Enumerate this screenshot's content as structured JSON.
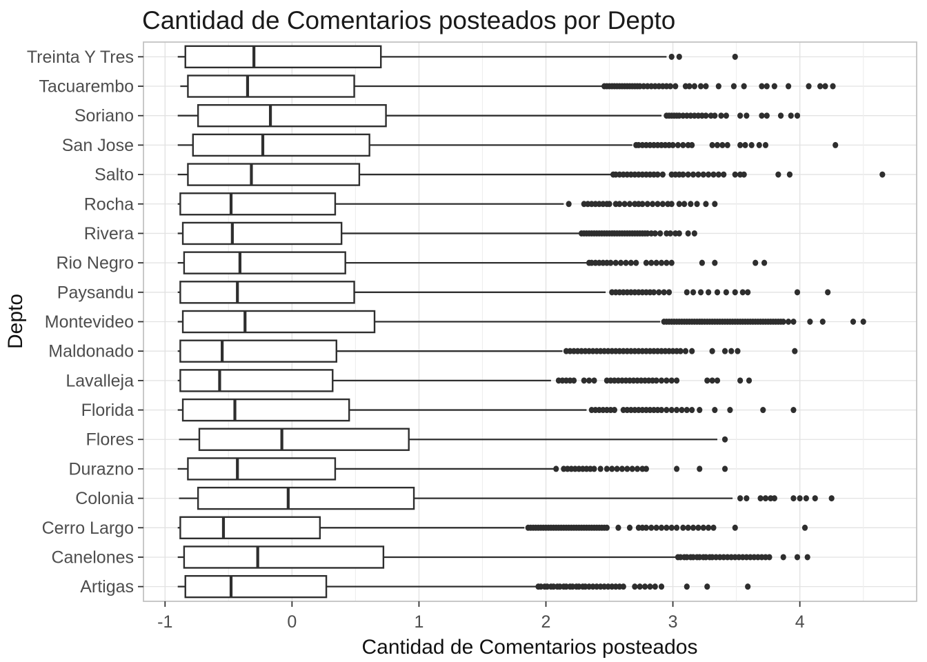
{
  "chart_data": {
    "type": "boxplot",
    "orientation": "horizontal",
    "title": "Cantidad de Comentarios posteados por Depto",
    "xlabel": "Cantidad de Comentarios posteados",
    "ylabel": "Depto",
    "xlim": [
      -1.17,
      4.92
    ],
    "x_ticks": [
      -1,
      0,
      1,
      2,
      3,
      4
    ],
    "x_minor_ticks": [
      -0.5,
      0.5,
      1.5,
      2.5,
      3.5,
      4.5
    ],
    "grid": true,
    "categories_top_to_bottom": [
      "Treinta Y Tres",
      "Tacuarembo",
      "Soriano",
      "San Jose",
      "Salto",
      "Rocha",
      "Rivera",
      "Rio Negro",
      "Paysandu",
      "Montevideo",
      "Maldonado",
      "Lavalleja",
      "Florida",
      "Flores",
      "Durazno",
      "Colonia",
      "Cerro Largo",
      "Canelones",
      "Artigas"
    ],
    "rows": [
      {
        "label": "Treinta Y Tres",
        "whisker_min": -0.9,
        "q1": -0.84,
        "median": -0.3,
        "q3": 0.7,
        "whisker_max": 2.95,
        "outliers": [
          2.99,
          3.05,
          3.49
        ]
      },
      {
        "label": "Tacuarembo",
        "whisker_min": -0.88,
        "q1": -0.82,
        "median": -0.35,
        "q3": 0.49,
        "whisker_max": 2.44,
        "outliers": [
          2.46,
          2.48,
          2.5,
          2.52,
          2.54,
          2.56,
          2.58,
          2.6,
          2.62,
          2.64,
          2.66,
          2.68,
          2.7,
          2.72,
          2.74,
          2.77,
          2.8,
          2.83,
          2.86,
          2.89,
          2.92,
          2.95,
          2.98,
          3.02,
          3.1,
          3.13,
          3.17,
          3.22,
          3.26,
          3.36,
          3.48,
          3.56,
          3.7,
          3.74,
          3.8,
          3.91,
          4.07,
          4.16,
          4.2,
          4.26
        ]
      },
      {
        "label": "Soriano",
        "whisker_min": -0.9,
        "q1": -0.74,
        "median": -0.17,
        "q3": 0.74,
        "whisker_max": 2.91,
        "outliers": [
          2.95,
          2.97,
          2.99,
          3.01,
          3.03,
          3.05,
          3.08,
          3.11,
          3.14,
          3.17,
          3.2,
          3.23,
          3.26,
          3.3,
          3.33,
          3.38,
          3.42,
          3.53,
          3.58,
          3.7,
          3.74,
          3.85,
          3.93,
          3.98
        ]
      },
      {
        "label": "San Jose",
        "whisker_min": -0.9,
        "q1": -0.78,
        "median": -0.23,
        "q3": 0.61,
        "whisker_max": 2.68,
        "outliers": [
          2.71,
          2.73,
          2.76,
          2.79,
          2.82,
          2.85,
          2.88,
          2.91,
          2.94,
          2.97,
          3.0,
          3.04,
          3.08,
          3.12,
          3.15,
          3.31,
          3.35,
          3.39,
          3.43,
          3.53,
          3.57,
          3.62,
          3.68,
          3.73,
          4.28
        ]
      },
      {
        "label": "Salto",
        "whisker_min": -0.9,
        "q1": -0.82,
        "median": -0.32,
        "q3": 0.53,
        "whisker_max": 2.51,
        "outliers": [
          2.53,
          2.55,
          2.58,
          2.61,
          2.64,
          2.67,
          2.7,
          2.73,
          2.76,
          2.79,
          2.82,
          2.85,
          2.88,
          2.92,
          2.99,
          3.02,
          3.05,
          3.08,
          3.12,
          3.16,
          3.2,
          3.24,
          3.28,
          3.32,
          3.36,
          3.4,
          3.49,
          3.53,
          3.56,
          3.83,
          3.92,
          4.65
        ]
      },
      {
        "label": "Rocha",
        "whisker_min": -0.9,
        "q1": -0.88,
        "median": -0.48,
        "q3": 0.34,
        "whisker_max": 2.14,
        "outliers": [
          2.18,
          2.3,
          2.33,
          2.36,
          2.39,
          2.42,
          2.45,
          2.48,
          2.5,
          2.55,
          2.58,
          2.62,
          2.66,
          2.7,
          2.73,
          2.76,
          2.8,
          2.84,
          2.88,
          2.92,
          2.96,
          2.99,
          3.05,
          3.09,
          3.14,
          3.19,
          3.26,
          3.33
        ]
      },
      {
        "label": "Rivera",
        "whisker_min": -0.9,
        "q1": -0.86,
        "median": -0.47,
        "q3": 0.39,
        "whisker_max": 2.26,
        "outliers": [
          2.28,
          2.3,
          2.32,
          2.34,
          2.36,
          2.38,
          2.4,
          2.42,
          2.44,
          2.46,
          2.48,
          2.5,
          2.52,
          2.54,
          2.56,
          2.58,
          2.6,
          2.62,
          2.64,
          2.66,
          2.68,
          2.7,
          2.72,
          2.74,
          2.76,
          2.78,
          2.8,
          2.83,
          2.86,
          2.9,
          2.95,
          2.98,
          3.02,
          3.05,
          3.12,
          3.17
        ]
      },
      {
        "label": "Rio Negro",
        "whisker_min": -0.9,
        "q1": -0.85,
        "median": -0.41,
        "q3": 0.42,
        "whisker_max": 2.32,
        "outliers": [
          2.34,
          2.36,
          2.39,
          2.42,
          2.45,
          2.48,
          2.51,
          2.55,
          2.59,
          2.63,
          2.67,
          2.71,
          2.79,
          2.83,
          2.87,
          2.91,
          2.95,
          2.99,
          3.23,
          3.33,
          3.65,
          3.72
        ]
      },
      {
        "label": "Paysandu",
        "whisker_min": -0.9,
        "q1": -0.88,
        "median": -0.43,
        "q3": 0.49,
        "whisker_max": 2.47,
        "outliers": [
          2.52,
          2.55,
          2.58,
          2.61,
          2.64,
          2.67,
          2.7,
          2.73,
          2.76,
          2.79,
          2.82,
          2.85,
          2.89,
          2.93,
          2.97,
          3.11,
          3.16,
          3.22,
          3.28,
          3.35,
          3.42,
          3.49,
          3.55,
          3.59,
          3.98,
          4.22
        ]
      },
      {
        "label": "Montevideo",
        "whisker_min": -0.9,
        "q1": -0.86,
        "median": -0.37,
        "q3": 0.65,
        "whisker_max": 2.9,
        "outliers": [
          2.93,
          2.95,
          2.97,
          2.99,
          3.01,
          3.03,
          3.05,
          3.07,
          3.09,
          3.11,
          3.13,
          3.15,
          3.17,
          3.19,
          3.21,
          3.23,
          3.25,
          3.27,
          3.29,
          3.31,
          3.33,
          3.35,
          3.37,
          3.39,
          3.41,
          3.43,
          3.45,
          3.47,
          3.49,
          3.51,
          3.53,
          3.55,
          3.57,
          3.59,
          3.61,
          3.63,
          3.65,
          3.67,
          3.69,
          3.71,
          3.73,
          3.75,
          3.77,
          3.79,
          3.81,
          3.83,
          3.85,
          3.87,
          3.91,
          3.95,
          4.08,
          4.18,
          4.42,
          4.5
        ]
      },
      {
        "label": "Maldonado",
        "whisker_min": -0.9,
        "q1": -0.88,
        "median": -0.55,
        "q3": 0.35,
        "whisker_max": 2.13,
        "outliers": [
          2.16,
          2.19,
          2.22,
          2.25,
          2.28,
          2.31,
          2.34,
          2.37,
          2.4,
          2.43,
          2.46,
          2.49,
          2.52,
          2.55,
          2.58,
          2.61,
          2.64,
          2.67,
          2.7,
          2.73,
          2.76,
          2.79,
          2.82,
          2.85,
          2.88,
          2.91,
          2.94,
          2.97,
          3.0,
          3.03,
          3.06,
          3.1,
          3.15,
          3.31,
          3.41,
          3.46,
          3.51,
          3.96
        ]
      },
      {
        "label": "Lavalleja",
        "whisker_min": -0.9,
        "q1": -0.88,
        "median": -0.57,
        "q3": 0.32,
        "whisker_max": 2.04,
        "outliers": [
          2.1,
          2.13,
          2.16,
          2.19,
          2.22,
          2.3,
          2.34,
          2.38,
          2.48,
          2.51,
          2.54,
          2.57,
          2.6,
          2.63,
          2.66,
          2.69,
          2.72,
          2.75,
          2.78,
          2.81,
          2.84,
          2.87,
          2.91,
          2.95,
          2.99,
          3.03,
          3.27,
          3.31,
          3.35,
          3.53,
          3.6
        ]
      },
      {
        "label": "Florida",
        "whisker_min": -0.9,
        "q1": -0.86,
        "median": -0.45,
        "q3": 0.45,
        "whisker_max": 2.32,
        "outliers": [
          2.36,
          2.39,
          2.42,
          2.45,
          2.48,
          2.51,
          2.54,
          2.61,
          2.64,
          2.67,
          2.7,
          2.73,
          2.76,
          2.79,
          2.82,
          2.85,
          2.88,
          2.91,
          2.95,
          2.99,
          3.03,
          3.07,
          3.11,
          3.15,
          3.21,
          3.33,
          3.45,
          3.71,
          3.95
        ]
      },
      {
        "label": "Flores",
        "whisker_min": -0.89,
        "q1": -0.73,
        "median": -0.08,
        "q3": 0.92,
        "whisker_max": 3.35,
        "outliers": [
          3.41
        ]
      },
      {
        "label": "Durazno",
        "whisker_min": -0.9,
        "q1": -0.82,
        "median": -0.43,
        "q3": 0.34,
        "whisker_max": 2.06,
        "outliers": [
          2.08,
          2.14,
          2.17,
          2.2,
          2.23,
          2.26,
          2.29,
          2.32,
          2.35,
          2.38,
          2.43,
          2.48,
          2.52,
          2.56,
          2.6,
          2.64,
          2.68,
          2.72,
          2.76,
          2.79,
          3.03,
          3.21,
          3.41
        ]
      },
      {
        "label": "Colonia",
        "whisker_min": -0.89,
        "q1": -0.74,
        "median": -0.03,
        "q3": 0.96,
        "whisker_max": 3.47,
        "outliers": [
          3.53,
          3.58,
          3.69,
          3.73,
          3.77,
          3.8,
          3.95,
          4.0,
          4.05,
          4.12,
          4.25
        ]
      },
      {
        "label": "Cerro Largo",
        "whisker_min": -0.9,
        "q1": -0.88,
        "median": -0.54,
        "q3": 0.22,
        "whisker_max": 1.83,
        "outliers": [
          1.86,
          1.88,
          1.9,
          1.92,
          1.94,
          1.96,
          1.98,
          2.0,
          2.02,
          2.04,
          2.06,
          2.08,
          2.1,
          2.12,
          2.14,
          2.16,
          2.18,
          2.2,
          2.22,
          2.24,
          2.26,
          2.28,
          2.3,
          2.32,
          2.34,
          2.36,
          2.38,
          2.4,
          2.42,
          2.44,
          2.46,
          2.48,
          2.57,
          2.66,
          2.73,
          2.76,
          2.79,
          2.83,
          2.87,
          2.91,
          2.95,
          2.99,
          3.03,
          3.08,
          3.12,
          3.16,
          3.2,
          3.24,
          3.28,
          3.32,
          3.49,
          4.04
        ]
      },
      {
        "label": "Canelones",
        "whisker_min": -0.9,
        "q1": -0.85,
        "median": -0.27,
        "q3": 0.72,
        "whisker_max": 3.03,
        "outliers": [
          3.04,
          3.06,
          3.09,
          3.11,
          3.14,
          3.16,
          3.19,
          3.21,
          3.24,
          3.26,
          3.29,
          3.31,
          3.34,
          3.37,
          3.4,
          3.43,
          3.46,
          3.49,
          3.52,
          3.55,
          3.58,
          3.61,
          3.64,
          3.67,
          3.7,
          3.73,
          3.76,
          3.87,
          3.98,
          4.06
        ]
      },
      {
        "label": "Artigas",
        "whisker_min": -0.9,
        "q1": -0.84,
        "median": -0.48,
        "q3": 0.27,
        "whisker_max": 1.92,
        "outliers": [
          1.94,
          1.96,
          1.99,
          2.01,
          2.04,
          2.06,
          2.09,
          2.11,
          2.14,
          2.16,
          2.19,
          2.21,
          2.24,
          2.26,
          2.29,
          2.31,
          2.34,
          2.37,
          2.4,
          2.43,
          2.46,
          2.49,
          2.52,
          2.55,
          2.58,
          2.61,
          2.7,
          2.74,
          2.78,
          2.82,
          2.86,
          2.91,
          3.11,
          3.27,
          3.59
        ]
      }
    ],
    "style_colors": {
      "box_stroke": "#2e2e2e",
      "box_fill": "#ffffff",
      "outlier_fill": "#2e2e2e",
      "grid_major": "#e2e2e2",
      "grid_minor": "#efefef",
      "panel_border": "#c2c2c2",
      "tick_mark": "#333333",
      "tick_text": "#4d4d4d"
    }
  }
}
